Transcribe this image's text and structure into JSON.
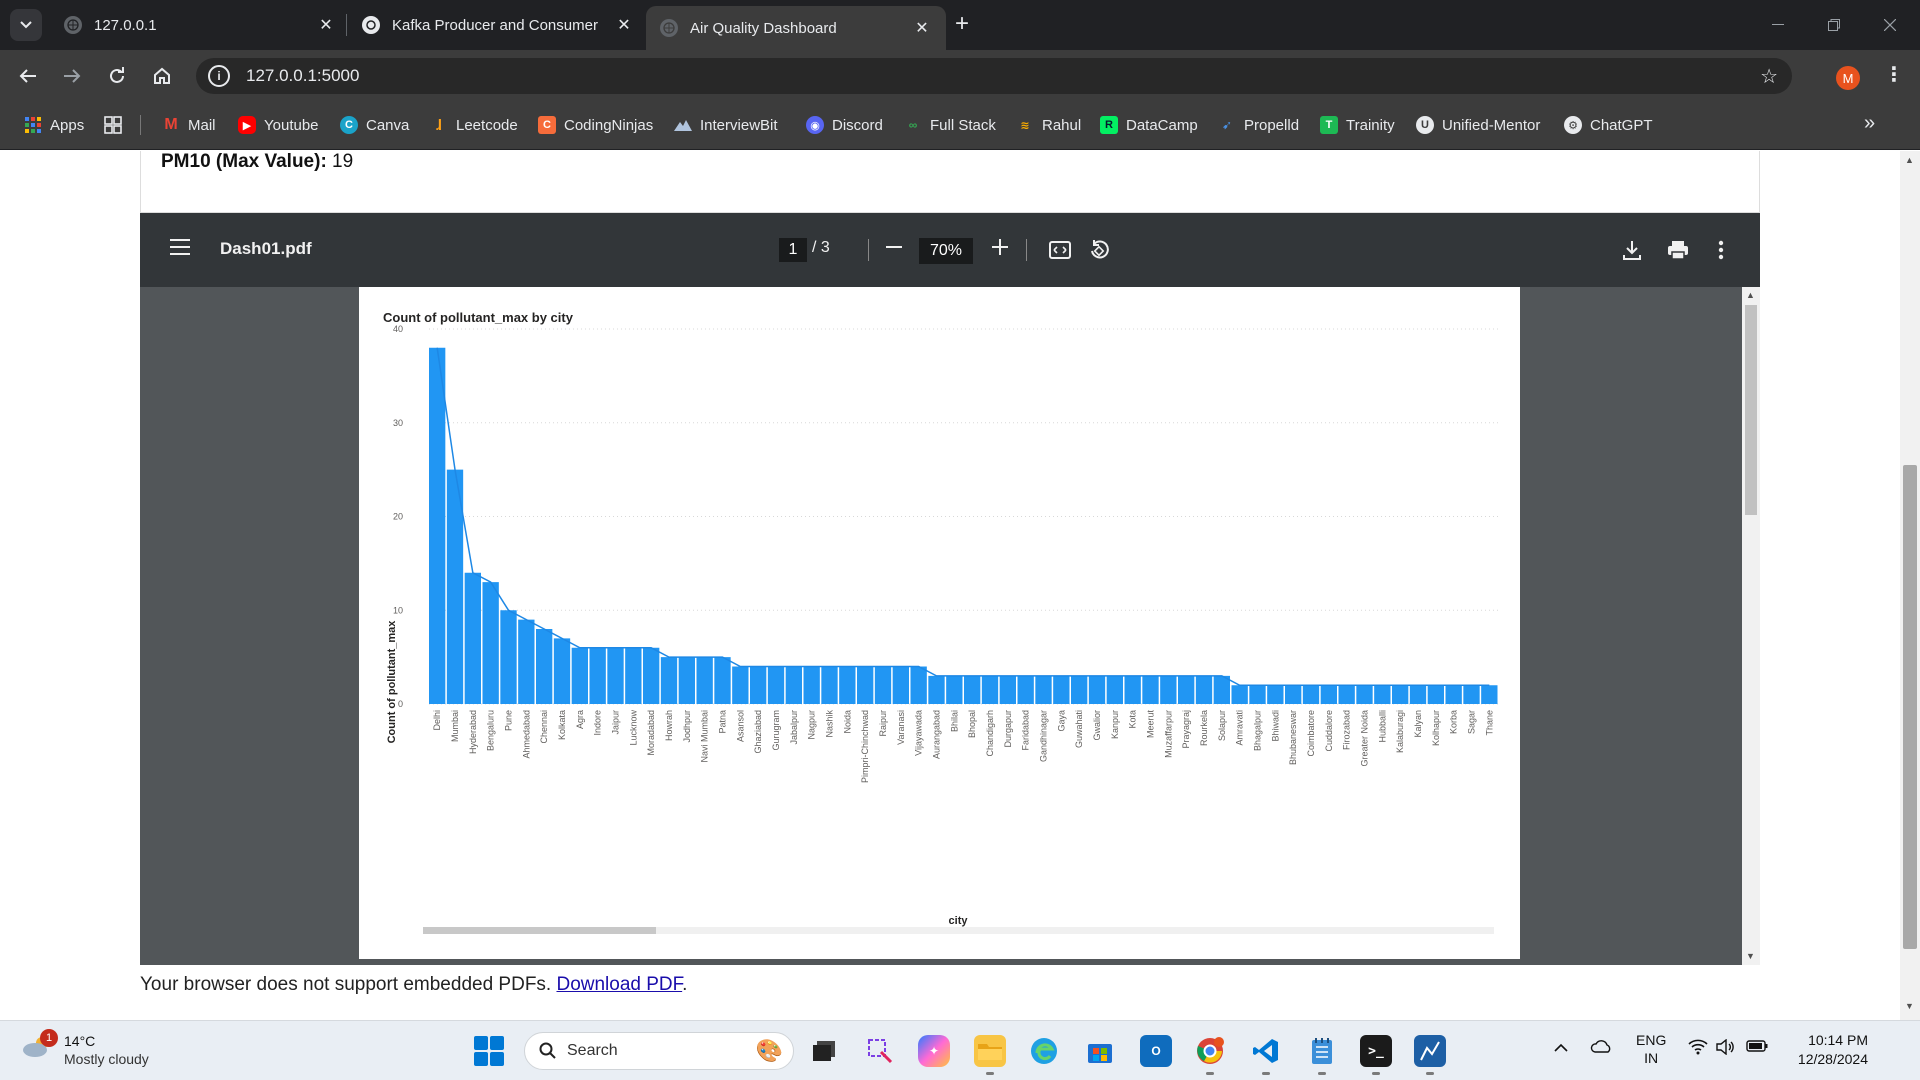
{
  "browser": {
    "tabs": [
      {
        "title": "127.0.0.1",
        "active": false
      },
      {
        "title": "Kafka Producer and Consumer",
        "active": false
      },
      {
        "title": "Air Quality Dashboard",
        "active": true
      }
    ],
    "url": "127.0.0.1:5000",
    "profile_initial": "M",
    "bookmarks": [
      {
        "label": "Apps",
        "icon": "apps-grid-icon"
      },
      {
        "label": "Mail",
        "icon": "gmail-icon"
      },
      {
        "label": "Youtube",
        "icon": "youtube-icon"
      },
      {
        "label": "Canva",
        "icon": "canva-icon"
      },
      {
        "label": "Leetcode",
        "icon": "leetcode-icon"
      },
      {
        "label": "CodingNinjas",
        "icon": "codingninjas-icon"
      },
      {
        "label": "InterviewBit",
        "icon": "interviewbit-icon"
      },
      {
        "label": "Discord",
        "icon": "discord-icon"
      },
      {
        "label": "Full Stack",
        "icon": "fullstack-icon"
      },
      {
        "label": "Rahul",
        "icon": "rahul-icon"
      },
      {
        "label": "DataCamp",
        "icon": "datacamp-icon"
      },
      {
        "label": "Propelld",
        "icon": "propelld-icon"
      },
      {
        "label": "Trainity",
        "icon": "trainity-icon"
      },
      {
        "label": "Unified-Mentor",
        "icon": "unified-mentor-icon"
      },
      {
        "label": "ChatGPT",
        "icon": "chatgpt-icon"
      }
    ]
  },
  "page": {
    "pm10_label": "PM10 (Max Value):",
    "pm10_value": " 19",
    "fallback_text": "Your browser does not support embedded PDFs. ",
    "fallback_link": "Download PDF",
    "fallback_end": "."
  },
  "pdf_viewer": {
    "filename": "Dash01.pdf",
    "current_page": "1",
    "total_pages": "/  3",
    "zoom": "70%"
  },
  "chart_data": {
    "type": "area",
    "title": "Count of pollutant_max by city",
    "xlabel": "city",
    "ylabel": "Count of pollutant_max",
    "ylim": [
      0,
      40
    ],
    "yticks": [
      0,
      10,
      20,
      30,
      40
    ],
    "grid": true,
    "color": "#2196f3",
    "categories": [
      "Delhi",
      "Mumbai",
      "Hyderabad",
      "Bengaluru",
      "Pune",
      "Ahmedabad",
      "Chennai",
      "Kolkata",
      "Agra",
      "Indore",
      "Jaipur",
      "Lucknow",
      "Moradabad",
      "Howrah",
      "Jodhpur",
      "Navi Mumbai",
      "Patna",
      "Asansol",
      "Ghaziabad",
      "Gurugram",
      "Jabalpur",
      "Nagpur",
      "Nashik",
      "Noida",
      "Pimpri-Chinchwad",
      "Raipur",
      "Varanasi",
      "Vijayawada",
      "Aurangabad",
      "Bhilai",
      "Bhopal",
      "Chandigarh",
      "Durgapur",
      "Faridabad",
      "Gandhinagar",
      "Gaya",
      "Guwahati",
      "Gwalior",
      "Kanpur",
      "Kota",
      "Meerut",
      "Muzaffarpur",
      "Prayagraj",
      "Rourkela",
      "Solapur",
      "Amravati",
      "Bhagalpur",
      "Bhiwadi",
      "Bhubaneswar",
      "Coimbatore",
      "Cuddalore",
      "Firozabad",
      "Greater Noida",
      "Hubballi",
      "Kalaburagi",
      "Kalyan",
      "Kolhapur",
      "Korba",
      "Sagar",
      "Thane"
    ],
    "values": [
      38,
      25,
      14,
      13,
      10,
      9,
      8,
      7,
      6,
      6,
      6,
      6,
      6,
      5,
      5,
      5,
      5,
      4,
      4,
      4,
      4,
      4,
      4,
      4,
      4,
      4,
      4,
      4,
      3,
      3,
      3,
      3,
      3,
      3,
      3,
      3,
      3,
      3,
      3,
      3,
      3,
      3,
      3,
      3,
      3,
      2,
      2,
      2,
      2,
      2,
      2,
      2,
      2,
      2,
      2,
      2,
      2,
      2,
      2,
      2
    ]
  },
  "taskbar": {
    "weather_badge": "1",
    "temperature": "14°C",
    "condition": "Mostly cloudy",
    "search_label": "Search",
    "lang_line1": "ENG",
    "lang_line2": "IN",
    "time": "10:14 PM",
    "date": "12/28/2024"
  }
}
